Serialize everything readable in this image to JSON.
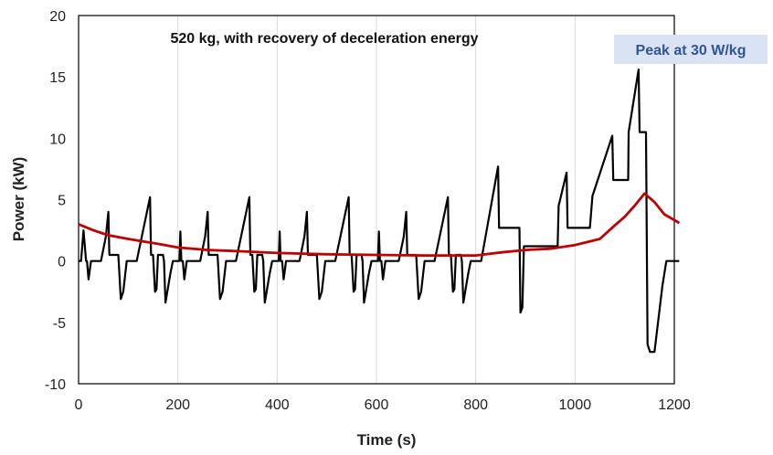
{
  "chart_data": {
    "type": "line",
    "title": "520 kg, with recovery of deceleration energy",
    "xlabel": "Time (s)",
    "ylabel": "Power (kW)",
    "xlim": [
      0,
      1200
    ],
    "ylim": [
      -10,
      20
    ],
    "xticks": [
      0,
      200,
      400,
      600,
      800,
      1000,
      1200
    ],
    "yticks": [
      -10,
      -5,
      0,
      5,
      10,
      15,
      20
    ],
    "grid": "vertical gridlines on",
    "legend": "none",
    "annotation": {
      "text": "Peak at 30 W/kg",
      "background": "#dae3f3",
      "color": "#2f5597"
    },
    "series": [
      {
        "color": "#000000",
        "points": [
          [
            0,
            0
          ],
          [
            5,
            0
          ],
          [
            10,
            2.5
          ],
          [
            15,
            0
          ],
          [
            17,
            0
          ],
          [
            20,
            -1.5
          ],
          [
            25,
            0
          ],
          [
            35,
            0
          ],
          [
            45,
            0
          ],
          [
            55,
            2.0
          ],
          [
            60,
            4.0
          ],
          [
            62,
            0.5
          ],
          [
            75,
            0.5
          ],
          [
            80,
            0.5
          ],
          [
            85,
            -3.1
          ],
          [
            90,
            -2.5
          ],
          [
            97,
            0
          ],
          [
            110,
            0
          ],
          [
            117,
            0
          ],
          [
            144,
            5.2
          ],
          [
            146,
            0.5
          ],
          [
            150,
            0.5
          ],
          [
            154,
            -2.5
          ],
          [
            157,
            -2.3
          ],
          [
            160,
            0.5
          ],
          [
            170,
            0.5
          ],
          [
            172,
            0
          ],
          [
            175,
            -3.4
          ],
          [
            185,
            -1.0
          ],
          [
            190,
            0
          ],
          [
            200,
            0
          ],
          [
            203,
            0
          ],
          [
            205,
            2.4
          ],
          [
            207,
            0
          ],
          [
            210,
            0
          ],
          [
            213,
            -1.5
          ],
          [
            218,
            0
          ],
          [
            233,
            0
          ],
          [
            245,
            0
          ],
          [
            255,
            2.0
          ],
          [
            260,
            4.0
          ],
          [
            262,
            0.5
          ],
          [
            275,
            0.5
          ],
          [
            280,
            0.5
          ],
          [
            285,
            -3.1
          ],
          [
            290,
            -2.5
          ],
          [
            297,
            0
          ],
          [
            310,
            0
          ],
          [
            317,
            0
          ],
          [
            344,
            5.2
          ],
          [
            346,
            0.5
          ],
          [
            350,
            0.5
          ],
          [
            354,
            -2.5
          ],
          [
            357,
            -2.3
          ],
          [
            360,
            0.5
          ],
          [
            370,
            0.5
          ],
          [
            372,
            0
          ],
          [
            375,
            -3.4
          ],
          [
            385,
            -1.0
          ],
          [
            390,
            0
          ],
          [
            400,
            0
          ],
          [
            403,
            0
          ],
          [
            405,
            2.4
          ],
          [
            407,
            0
          ],
          [
            410,
            0
          ],
          [
            413,
            -1.5
          ],
          [
            418,
            0
          ],
          [
            433,
            0
          ],
          [
            445,
            0
          ],
          [
            455,
            2.0
          ],
          [
            460,
            4.0
          ],
          [
            462,
            0.5
          ],
          [
            475,
            0.5
          ],
          [
            480,
            0.5
          ],
          [
            485,
            -3.1
          ],
          [
            490,
            -2.5
          ],
          [
            497,
            0
          ],
          [
            510,
            0
          ],
          [
            517,
            0
          ],
          [
            544,
            5.2
          ],
          [
            546,
            0.5
          ],
          [
            550,
            0.5
          ],
          [
            554,
            -2.5
          ],
          [
            557,
            -2.3
          ],
          [
            560,
            0.5
          ],
          [
            570,
            0.5
          ],
          [
            572,
            0
          ],
          [
            575,
            -3.4
          ],
          [
            585,
            -1.0
          ],
          [
            590,
            0
          ],
          [
            600,
            0
          ],
          [
            603,
            0
          ],
          [
            605,
            2.4
          ],
          [
            607,
            0
          ],
          [
            610,
            0
          ],
          [
            613,
            -1.5
          ],
          [
            618,
            0
          ],
          [
            633,
            0
          ],
          [
            645,
            0
          ],
          [
            655,
            2.0
          ],
          [
            660,
            4.0
          ],
          [
            662,
            0.5
          ],
          [
            675,
            0.5
          ],
          [
            680,
            0.5
          ],
          [
            685,
            -3.1
          ],
          [
            690,
            -2.5
          ],
          [
            697,
            0
          ],
          [
            710,
            0
          ],
          [
            717,
            0
          ],
          [
            744,
            5.2
          ],
          [
            746,
            0.5
          ],
          [
            750,
            0.5
          ],
          [
            754,
            -2.5
          ],
          [
            757,
            -2.3
          ],
          [
            760,
            0.5
          ],
          [
            770,
            0.5
          ],
          [
            772,
            0
          ],
          [
            775,
            -3.4
          ],
          [
            785,
            -1.0
          ],
          [
            790,
            0
          ],
          [
            800,
            0
          ],
          [
            811,
            0
          ],
          [
            845,
            7.7
          ],
          [
            847,
            2.7
          ],
          [
            888,
            2.7
          ],
          [
            890,
            -4.2
          ],
          [
            894,
            -3.8
          ],
          [
            897,
            1.2
          ],
          [
            965,
            1.2
          ],
          [
            967,
            4.5
          ],
          [
            983,
            7.2
          ],
          [
            985,
            2.7
          ],
          [
            1030,
            2.7
          ],
          [
            1035,
            5.3
          ],
          [
            1075,
            10.2
          ],
          [
            1077,
            6.6
          ],
          [
            1107,
            6.6
          ],
          [
            1108,
            10.5
          ],
          [
            1128,
            15.6
          ],
          [
            1130,
            10.5
          ],
          [
            1143,
            10.5
          ],
          [
            1146,
            -6.8
          ],
          [
            1151,
            -7.4
          ],
          [
            1160,
            -7.4
          ],
          [
            1176,
            -2.0
          ],
          [
            1184,
            0
          ],
          [
            1210,
            0
          ]
        ]
      },
      {
        "color": "#c00000",
        "points": [
          [
            0,
            3.0
          ],
          [
            30,
            2.5
          ],
          [
            60,
            2.1
          ],
          [
            100,
            1.8
          ],
          [
            130,
            1.6
          ],
          [
            160,
            1.4
          ],
          [
            200,
            1.1
          ],
          [
            260,
            0.9
          ],
          [
            320,
            0.8
          ],
          [
            400,
            0.65
          ],
          [
            500,
            0.55
          ],
          [
            600,
            0.5
          ],
          [
            700,
            0.45
          ],
          [
            800,
            0.45
          ],
          [
            850,
            0.7
          ],
          [
            900,
            0.9
          ],
          [
            950,
            1.0
          ],
          [
            1000,
            1.3
          ],
          [
            1050,
            1.8
          ],
          [
            1080,
            2.9
          ],
          [
            1100,
            3.6
          ],
          [
            1120,
            4.5
          ],
          [
            1140,
            5.5
          ],
          [
            1160,
            4.8
          ],
          [
            1180,
            3.8
          ],
          [
            1210,
            3.1
          ]
        ]
      }
    ]
  }
}
